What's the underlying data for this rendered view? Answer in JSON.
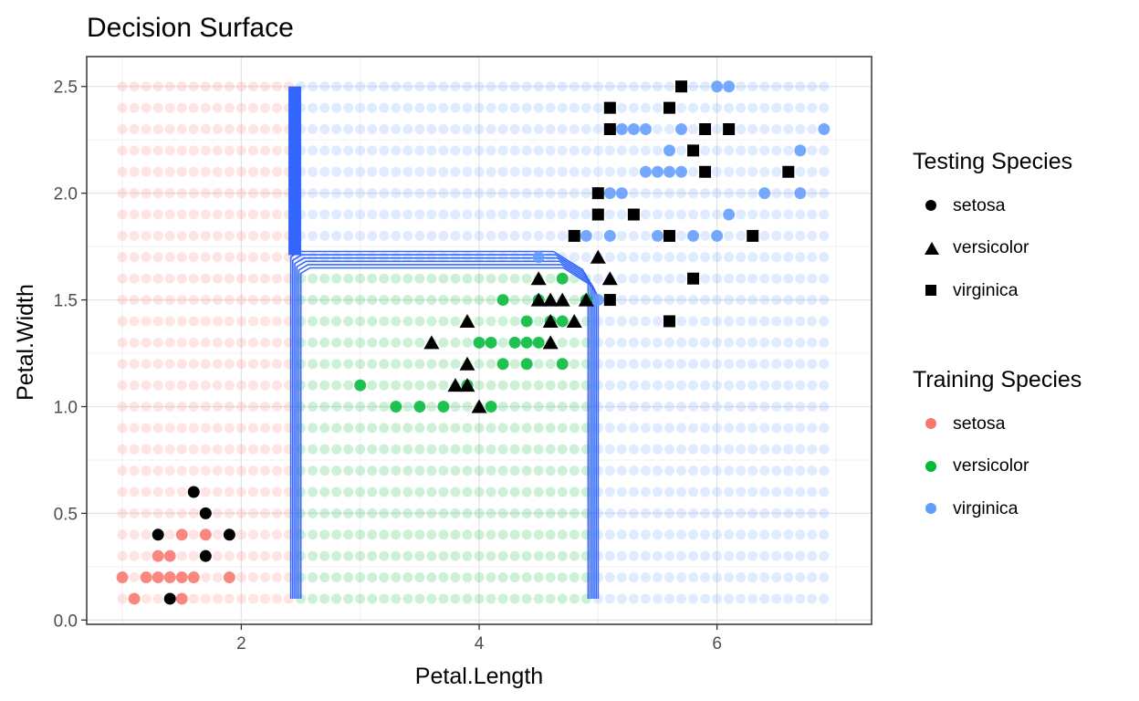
{
  "chart_data": {
    "type": "scatter",
    "title": "Decision Surface",
    "xlabel": "Petal.Length",
    "ylabel": "Petal.Width",
    "xlim": [
      0.7,
      7.3
    ],
    "ylim": [
      -0.02,
      2.64
    ],
    "x_ticks": [
      2,
      4,
      6
    ],
    "x_tick_labels": [
      "2",
      "4",
      "6"
    ],
    "y_ticks": [
      0.0,
      0.5,
      1.0,
      1.5,
      2.0,
      2.5
    ],
    "y_tick_labels": [
      "0.0",
      "0.5",
      "1.0",
      "1.5",
      "2.0",
      "2.5"
    ],
    "grid": true,
    "legend_position": "right",
    "colors": {
      "setosa": "#F8766D",
      "versicolor": "#00BA38",
      "virginica": "#619CFF",
      "boundary": "#3366FF",
      "testing": "#000000"
    },
    "grid_surface": {
      "x_start": 1.0,
      "x_end": 6.9,
      "x_step": 0.1,
      "y_start": 0.1,
      "y_end": 2.5,
      "y_step": 0.1,
      "regions": [
        {
          "class": "setosa",
          "rule": "Petal.Length < 2.45"
        },
        {
          "class": "versicolor",
          "rule": "Petal.Length >= 2.45 and Petal.Width < 1.65 and Petal.Length < 4.95"
        },
        {
          "class": "virginica",
          "rule": "otherwise"
        }
      ]
    },
    "boundary": {
      "left_x": 2.45,
      "right_x": 4.95,
      "width_split": 1.65,
      "y_min": 0.1,
      "y_max": 2.5
    },
    "training_series": [
      {
        "name": "setosa",
        "points": [
          [
            1.0,
            0.2
          ],
          [
            1.1,
            0.1
          ],
          [
            1.2,
            0.2
          ],
          [
            1.3,
            0.2
          ],
          [
            1.3,
            0.3
          ],
          [
            1.4,
            0.2
          ],
          [
            1.4,
            0.3
          ],
          [
            1.5,
            0.1
          ],
          [
            1.5,
            0.2
          ],
          [
            1.5,
            0.4
          ],
          [
            1.6,
            0.2
          ],
          [
            1.7,
            0.4
          ],
          [
            1.9,
            0.2
          ]
        ]
      },
      {
        "name": "versicolor",
        "points": [
          [
            3.0,
            1.1
          ],
          [
            3.3,
            1.0
          ],
          [
            3.5,
            1.0
          ],
          [
            3.7,
            1.0
          ],
          [
            3.9,
            1.1
          ],
          [
            4.0,
            1.3
          ],
          [
            4.1,
            1.0
          ],
          [
            4.1,
            1.3
          ],
          [
            4.2,
            1.2
          ],
          [
            4.2,
            1.5
          ],
          [
            4.3,
            1.3
          ],
          [
            4.4,
            1.2
          ],
          [
            4.4,
            1.3
          ],
          [
            4.4,
            1.4
          ],
          [
            4.5,
            1.3
          ],
          [
            4.5,
            1.5
          ],
          [
            4.6,
            1.4
          ],
          [
            4.7,
            1.2
          ],
          [
            4.7,
            1.4
          ],
          [
            4.7,
            1.6
          ],
          [
            4.9,
            1.5
          ]
        ]
      },
      {
        "name": "virginica",
        "points": [
          [
            4.5,
            1.7
          ],
          [
            4.8,
            1.8
          ],
          [
            4.9,
            1.8
          ],
          [
            5.0,
            1.5
          ],
          [
            5.0,
            2.0
          ],
          [
            5.1,
            1.8
          ],
          [
            5.1,
            2.0
          ],
          [
            5.1,
            2.3
          ],
          [
            5.2,
            2.0
          ],
          [
            5.2,
            2.3
          ],
          [
            5.3,
            2.3
          ],
          [
            5.4,
            2.1
          ],
          [
            5.4,
            2.3
          ],
          [
            5.5,
            1.8
          ],
          [
            5.5,
            2.1
          ],
          [
            5.6,
            1.8
          ],
          [
            5.6,
            2.1
          ],
          [
            5.6,
            2.2
          ],
          [
            5.6,
            2.4
          ],
          [
            5.7,
            2.1
          ],
          [
            5.7,
            2.3
          ],
          [
            5.8,
            1.8
          ],
          [
            6.0,
            1.8
          ],
          [
            6.0,
            2.5
          ],
          [
            6.1,
            1.9
          ],
          [
            6.1,
            2.5
          ],
          [
            6.4,
            2.0
          ],
          [
            6.7,
            2.0
          ],
          [
            6.7,
            2.2
          ],
          [
            6.9,
            2.3
          ]
        ]
      }
    ],
    "testing_series": [
      {
        "name": "setosa",
        "points": [
          [
            1.3,
            0.4
          ],
          [
            1.4,
            0.1
          ],
          [
            1.6,
            0.6
          ],
          [
            1.7,
            0.3
          ],
          [
            1.7,
            0.5
          ],
          [
            1.9,
            0.4
          ]
        ]
      },
      {
        "name": "versicolor",
        "points": [
          [
            3.6,
            1.3
          ],
          [
            3.8,
            1.1
          ],
          [
            3.9,
            1.1
          ],
          [
            3.9,
            1.2
          ],
          [
            3.9,
            1.4
          ],
          [
            4.0,
            1.0
          ],
          [
            4.5,
            1.5
          ],
          [
            4.5,
            1.6
          ],
          [
            4.6,
            1.3
          ],
          [
            4.6,
            1.4
          ],
          [
            4.6,
            1.5
          ],
          [
            4.7,
            1.5
          ],
          [
            4.8,
            1.4
          ],
          [
            4.9,
            1.5
          ],
          [
            5.0,
            1.7
          ],
          [
            5.1,
            1.6
          ]
        ]
      },
      {
        "name": "virginica",
        "points": [
          [
            4.8,
            1.8
          ],
          [
            5.0,
            1.9
          ],
          [
            5.0,
            2.0
          ],
          [
            5.1,
            1.5
          ],
          [
            5.1,
            2.3
          ],
          [
            5.1,
            2.4
          ],
          [
            5.3,
            1.9
          ],
          [
            5.6,
            1.4
          ],
          [
            5.6,
            1.8
          ],
          [
            5.6,
            2.4
          ],
          [
            5.7,
            2.5
          ],
          [
            5.8,
            1.6
          ],
          [
            5.8,
            2.2
          ],
          [
            5.9,
            2.1
          ],
          [
            5.9,
            2.3
          ],
          [
            6.1,
            2.3
          ],
          [
            6.3,
            1.8
          ],
          [
            6.6,
            2.1
          ]
        ]
      }
    ],
    "legends": [
      {
        "title": "Testing Species",
        "entries": [
          {
            "label": "setosa",
            "shape": "circle"
          },
          {
            "label": "versicolor",
            "shape": "triangle"
          },
          {
            "label": "virginica",
            "shape": "square"
          }
        ]
      },
      {
        "title": "Training Species",
        "entries": [
          {
            "label": "setosa",
            "color": "#F8766D"
          },
          {
            "label": "versicolor",
            "color": "#00BA38"
          },
          {
            "label": "virginica",
            "color": "#619CFF"
          }
        ]
      }
    ]
  }
}
